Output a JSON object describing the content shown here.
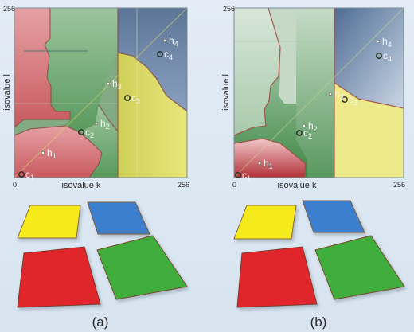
{
  "panels": [
    {
      "caption": "(a)",
      "axis": {
        "x_label": "isovalue k",
        "y_label": "isovalue l",
        "x_min": "0",
        "x_max": "256",
        "y_max": "256"
      },
      "points": [
        {
          "base": "c",
          "sub": "1",
          "kind": "c"
        },
        {
          "base": "h",
          "sub": "1",
          "kind": "h"
        },
        {
          "base": "c",
          "sub": "2",
          "kind": "c"
        },
        {
          "base": "h",
          "sub": "2",
          "kind": "h"
        },
        {
          "base": "c",
          "sub": "3",
          "kind": "c"
        },
        {
          "base": "h",
          "sub": "3",
          "kind": "h"
        },
        {
          "base": "c",
          "sub": "4",
          "kind": "c"
        },
        {
          "base": "h",
          "sub": "4",
          "kind": "h"
        }
      ]
    },
    {
      "caption": "(b)",
      "axis": {
        "x_label": "isovalue k",
        "y_label": "isovalue l",
        "x_min": "0",
        "x_max": "256",
        "y_max": "256"
      },
      "points": [
        {
          "base": "c",
          "sub": "1",
          "kind": "c"
        },
        {
          "base": "h",
          "sub": "1",
          "kind": "h"
        },
        {
          "base": "c",
          "sub": "2",
          "kind": "c"
        },
        {
          "base": "h",
          "sub": "2",
          "kind": "h"
        },
        {
          "base": "c",
          "sub": "3",
          "kind": "c"
        },
        {
          "base": "h",
          "sub": "3",
          "kind": "h"
        },
        {
          "base": "c",
          "sub": "4",
          "kind": "c"
        },
        {
          "base": "h",
          "sub": "4",
          "kind": "h"
        }
      ]
    }
  ],
  "tile_colors": {
    "yellow": "#f4ea1f",
    "blue": "#3d7fcf",
    "red": "#e0262b",
    "green": "#3fae3c"
  },
  "region_colors": {
    "red": "#d98a8d",
    "green": "#79a97c",
    "yellow": "#dcd86b",
    "blue": "#6f86a6"
  }
}
